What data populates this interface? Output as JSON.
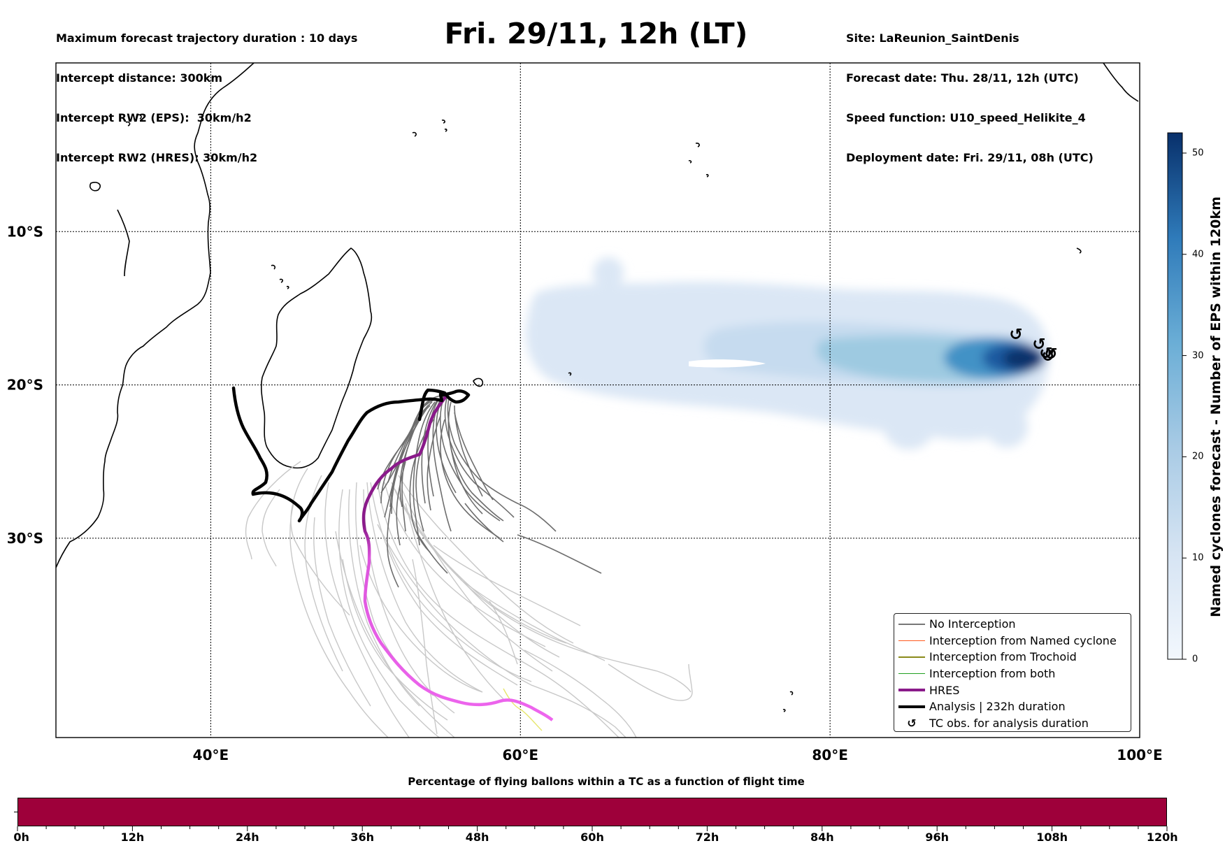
{
  "header": {
    "left_lines": [
      "Maximum forecast trajectory duration : 10 days",
      "Intercept distance: 300km",
      "Intercept RW2 (EPS):  30km/h2",
      "Intercept RW2 (HRES): 30km/h2"
    ],
    "title": "Fri. 29/11, 12h (LT)",
    "right_lines": [
      "Site: LaReunion_SaintDenis",
      "Forecast date: Thu. 28/11, 12h (UTC)",
      "Speed function: U10_speed_Helikite_4",
      "Deployment date: Fri. 29/11, 08h (UTC)"
    ]
  },
  "map": {
    "lon_range": [
      30,
      100
    ],
    "lat_range": [
      -43,
      1
    ],
    "lon_ticks": [
      {
        "value": 40,
        "label": "40°E"
      },
      {
        "value": 60,
        "label": "60°E"
      },
      {
        "value": 80,
        "label": "80°E"
      },
      {
        "value": 100,
        "label": "100°E"
      }
    ],
    "lat_ticks": [
      {
        "value": -10,
        "label": "10°S"
      },
      {
        "value": -20,
        "label": "20°S"
      },
      {
        "value": -30,
        "label": "30°S"
      }
    ],
    "colors": {
      "no_interception": "#6e6e6e",
      "other_members": "#cfcfcf",
      "hres_near": "#8a1a8a",
      "hres_far": "#ee66ee",
      "analysis": "#000000",
      "density_dark": "#08306b",
      "density_light": "#dbe7f5"
    }
  },
  "legend": {
    "items": [
      {
        "label": "No Interception",
        "color": "#777777",
        "width": 1.5,
        "symbol": ""
      },
      {
        "label": "Interception from Named cyclone",
        "color": "#ff5a1e",
        "width": 1.5,
        "symbol": ""
      },
      {
        "label": "Interception from Trochoid",
        "color": "#8a8a1a",
        "width": 1.5,
        "symbol": ""
      },
      {
        "label": "Interception from both",
        "color": "#22a022",
        "width": 1.5,
        "symbol": ""
      },
      {
        "label": "HRES",
        "color": "#8a1a8a",
        "width": 4,
        "symbol": ""
      },
      {
        "label": "Analysis | 232h duration",
        "color": "#000000",
        "width": 4,
        "symbol": ""
      },
      {
        "label": "TC obs. for analysis duration",
        "color": "#000000",
        "width": 0,
        "symbol": "↺"
      }
    ]
  },
  "colorbar": {
    "title": "Named cyclones forecast - Number of EPS within 120km",
    "min": 0,
    "max": 52,
    "ticks": [
      0,
      10,
      20,
      30,
      40,
      50
    ],
    "color_low": "#f2f7fd",
    "color_high": "#08306b"
  },
  "flight_bar": {
    "title": "Percentage of flying ballons within a TC as a function of flight time",
    "color": "#9e003a",
    "ticks": [
      "0h",
      "12h",
      "24h",
      "36h",
      "48h",
      "60h",
      "72h",
      "84h",
      "96h",
      "108h",
      "120h"
    ]
  }
}
